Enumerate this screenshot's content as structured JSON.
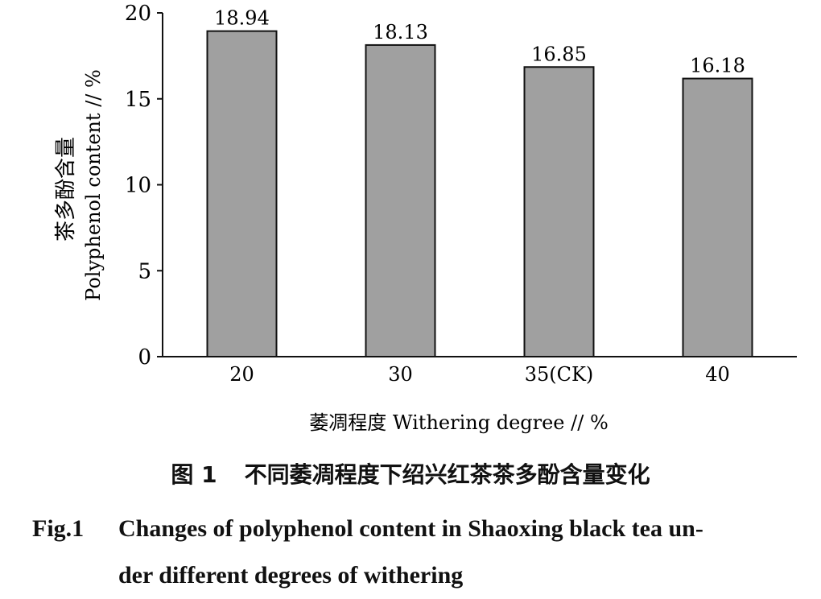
{
  "chart_data": {
    "type": "bar",
    "categories": [
      "20",
      "30",
      "35(CK)",
      "40"
    ],
    "values": [
      18.94,
      18.13,
      16.85,
      16.18
    ],
    "data_labels": [
      "18.94",
      "18.13",
      "16.85",
      "16.18"
    ],
    "ylim": [
      0,
      20
    ],
    "yticks": [
      "0",
      "5",
      "10",
      "15",
      "20"
    ],
    "ylabel_cn": "茶多酚含量",
    "ylabel": "Polyphenol content // %",
    "xlabel": "萎凋程度 Withering degree // %",
    "bar_color": "#a0a0a0",
    "grid": false,
    "legend": "none"
  },
  "caption": {
    "cn_number": "图 1",
    "cn_title": "不同萎凋程度下绍兴红茶茶多酚含量变化",
    "en_label": "Fig.1",
    "en_line1": "Changes of polyphenol content in Shaoxing black tea un-",
    "en_line2": "der different degrees of withering"
  }
}
